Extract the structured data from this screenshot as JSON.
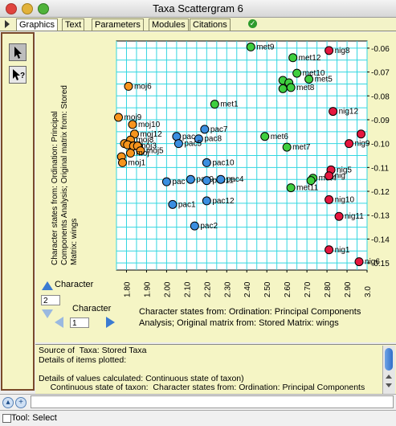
{
  "window": {
    "title": "Taxa Scattergram 6"
  },
  "tabs": [
    {
      "label": "Graphics",
      "active": true
    },
    {
      "label": "Text",
      "active": false
    },
    {
      "label": "Parameters",
      "active": false
    },
    {
      "label": "Modules",
      "active": false
    },
    {
      "label": "Citations",
      "active": false
    }
  ],
  "tools": [
    {
      "icon": "arrow-select-icon",
      "glyph": "➚"
    },
    {
      "icon": "arrow-query-icon",
      "glyph": "?"
    }
  ],
  "yaxis_title": "Character states from: Ordination: Principal Components Analysis;  Original matrix from: Stored Matrix: wings",
  "xaxis_caption": "Character states from: Ordination: Principal Components Analysis;  Original matrix from: Stored Matrix: wings",
  "controls": {
    "y_character_label": "Character",
    "y_character_value": "2",
    "x_character_label": "Character",
    "x_character_value": "1"
  },
  "info_text": "Source of  Taxa: Stored Taxa\nDetails of items plotted:\n\nDetails of values calculated: Continuous state of taxon)\n     Continuous state of taxon:  Character states from: Ordination: Principal Components",
  "status": {
    "text": "Tool: Select"
  },
  "colors": {
    "moj": "#f7941d",
    "pac": "#3b8ee0",
    "met": "#3fcf3f",
    "nig": "#e5173f",
    "grid": "#33d6e0"
  },
  "chart_data": {
    "type": "scatter",
    "xlim": [
      1.75,
      3.0
    ],
    "ylim": [
      -0.153,
      -0.057
    ],
    "xticks": [
      "1.80",
      "1.90",
      "2.00",
      "2.10",
      "2.20",
      "2.30",
      "2.40",
      "2.50",
      "2.60",
      "2.70",
      "2.80",
      "2.90",
      "3.0"
    ],
    "yticks": [
      "-0.06",
      "-0.07",
      "-0.08",
      "-0.09",
      "-0.10",
      "-0.11",
      "-0.12",
      "-0.13",
      "-0.14",
      "-0.15"
    ],
    "grid": true,
    "points": [
      {
        "label": "moj6",
        "x": 1.81,
        "y": -0.076,
        "group": "moj"
      },
      {
        "label": "moj9",
        "x": 1.76,
        "y": -0.089,
        "group": "moj"
      },
      {
        "label": "moj10",
        "x": 1.83,
        "y": -0.092,
        "group": "moj"
      },
      {
        "label": "moj12",
        "x": 1.84,
        "y": -0.096,
        "group": "moj"
      },
      {
        "label": "moj8",
        "x": 1.82,
        "y": -0.0985,
        "group": "moj"
      },
      {
        "label": "moj",
        "x": 1.79,
        "y": -0.1,
        "group": "moj"
      },
      {
        "label": "",
        "x": 1.805,
        "y": -0.1005,
        "group": "moj"
      },
      {
        "label": "moj3",
        "x": 1.835,
        "y": -0.101,
        "group": "moj"
      },
      {
        "label": "",
        "x": 1.855,
        "y": -0.101,
        "group": "moj"
      },
      {
        "label": "moj5",
        "x": 1.87,
        "y": -0.103,
        "group": "moj"
      },
      {
        "label": "moj",
        "x": 1.82,
        "y": -0.104,
        "group": "moj"
      },
      {
        "label": "",
        "x": 1.775,
        "y": -0.1055,
        "group": "moj"
      },
      {
        "label": "moj1",
        "x": 1.78,
        "y": -0.108,
        "group": "moj"
      },
      {
        "label": "pac7",
        "x": 2.19,
        "y": -0.094,
        "group": "pac"
      },
      {
        "label": "pac",
        "x": 2.05,
        "y": -0.097,
        "group": "pac"
      },
      {
        "label": "pac8",
        "x": 2.16,
        "y": -0.098,
        "group": "pac"
      },
      {
        "label": "pac5",
        "x": 2.06,
        "y": -0.1,
        "group": "pac"
      },
      {
        "label": "pac10",
        "x": 2.2,
        "y": -0.108,
        "group": "pac"
      },
      {
        "label": "pac",
        "x": 2.0,
        "y": -0.116,
        "group": "pac"
      },
      {
        "label": "pac9",
        "x": 2.12,
        "y": -0.115,
        "group": "pac"
      },
      {
        "label": "pac11",
        "x": 2.2,
        "y": -0.1155,
        "group": "pac"
      },
      {
        "label": "pac4",
        "x": 2.27,
        "y": -0.115,
        "group": "pac"
      },
      {
        "label": "pac12",
        "x": 2.2,
        "y": -0.124,
        "group": "pac"
      },
      {
        "label": "pac1",
        "x": 2.03,
        "y": -0.1255,
        "group": "pac"
      },
      {
        "label": "pac2",
        "x": 2.14,
        "y": -0.1345,
        "group": "pac"
      },
      {
        "label": "met9",
        "x": 2.42,
        "y": -0.0595,
        "group": "met"
      },
      {
        "label": "met12",
        "x": 2.63,
        "y": -0.064,
        "group": "met"
      },
      {
        "label": "met10",
        "x": 2.65,
        "y": -0.0705,
        "group": "met"
      },
      {
        "label": "met5",
        "x": 2.71,
        "y": -0.073,
        "group": "met"
      },
      {
        "label": "",
        "x": 2.58,
        "y": -0.0735,
        "group": "met"
      },
      {
        "label": "",
        "x": 2.61,
        "y": -0.0745,
        "group": "met"
      },
      {
        "label": "met8",
        "x": 2.62,
        "y": -0.0765,
        "group": "met"
      },
      {
        "label": "",
        "x": 2.58,
        "y": -0.077,
        "group": "met"
      },
      {
        "label": "met1",
        "x": 2.24,
        "y": -0.0835,
        "group": "met"
      },
      {
        "label": "met6",
        "x": 2.49,
        "y": -0.097,
        "group": "met"
      },
      {
        "label": "met7",
        "x": 2.6,
        "y": -0.1015,
        "group": "met"
      },
      {
        "label": "met4",
        "x": 2.73,
        "y": -0.1145,
        "group": "met"
      },
      {
        "label": "",
        "x": 2.72,
        "y": -0.1155,
        "group": "met"
      },
      {
        "label": "met11",
        "x": 2.62,
        "y": -0.1185,
        "group": "met"
      },
      {
        "label": "nig8",
        "x": 2.81,
        "y": -0.061,
        "group": "nig"
      },
      {
        "label": "nig12",
        "x": 2.83,
        "y": -0.0865,
        "group": "nig"
      },
      {
        "label": "nig9",
        "x": 2.91,
        "y": -0.1,
        "group": "nig"
      },
      {
        "label": "",
        "x": 2.97,
        "y": -0.096,
        "group": "nig"
      },
      {
        "label": "nig5",
        "x": 2.82,
        "y": -0.111,
        "group": "nig"
      },
      {
        "label": "nig",
        "x": 2.81,
        "y": -0.1135,
        "group": "nig"
      },
      {
        "label": "nig10",
        "x": 2.81,
        "y": -0.1235,
        "group": "nig"
      },
      {
        "label": "nig11",
        "x": 2.86,
        "y": -0.1305,
        "group": "nig"
      },
      {
        "label": "nig1",
        "x": 2.81,
        "y": -0.1445,
        "group": "nig"
      },
      {
        "label": "nig6",
        "x": 2.96,
        "y": -0.1495,
        "group": "nig"
      }
    ]
  }
}
